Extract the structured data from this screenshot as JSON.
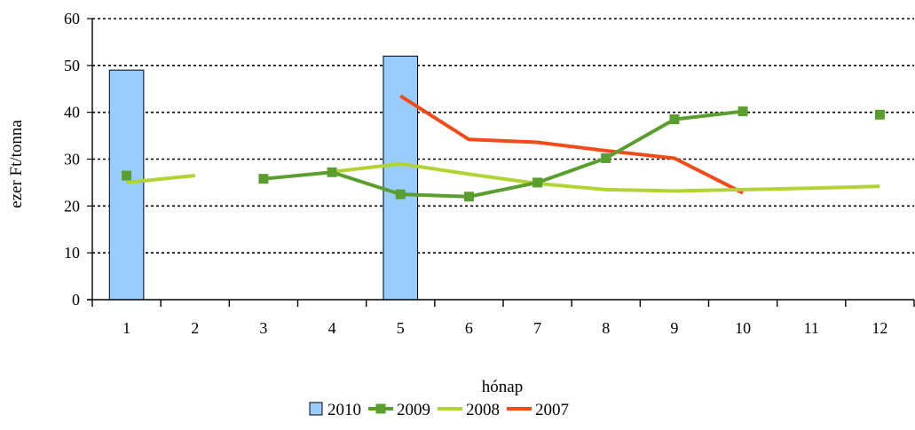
{
  "chart_data": {
    "type": "bar",
    "title": "",
    "xlabel": "hónap",
    "ylabel": "ezer Ft/tonna",
    "categories": [
      "1",
      "2",
      "3",
      "4",
      "5",
      "6",
      "7",
      "8",
      "9",
      "10",
      "11",
      "12"
    ],
    "ylim": [
      0,
      60
    ],
    "yticks": [
      "0",
      "10",
      "20",
      "30",
      "40",
      "50",
      "60"
    ],
    "grid": true,
    "legend_position": "bottom",
    "series": [
      {
        "name": "2010",
        "type": "bar",
        "color": "#99ccff",
        "values": [
          49,
          null,
          null,
          null,
          52,
          null,
          null,
          null,
          null,
          null,
          null,
          null
        ]
      },
      {
        "name": "2009",
        "type": "line",
        "color": "#5a9e2f",
        "marker": "square",
        "values": [
          26.5,
          null,
          25.8,
          27.2,
          22.5,
          22,
          25,
          30.2,
          38.5,
          40.2,
          null,
          39.5
        ]
      },
      {
        "name": "2008",
        "type": "line",
        "color": "#b2d335",
        "marker": "none",
        "values": [
          25,
          26.5,
          null,
          27.3,
          29,
          26.8,
          24.8,
          23.5,
          23.2,
          23.5,
          23.8,
          24.2
        ]
      },
      {
        "name": "2007",
        "type": "line",
        "color": "#f24b1a",
        "marker": "none",
        "values": [
          null,
          null,
          null,
          null,
          43.5,
          34.2,
          33.6,
          31.8,
          30.2,
          22.8,
          null,
          null
        ]
      }
    ]
  }
}
